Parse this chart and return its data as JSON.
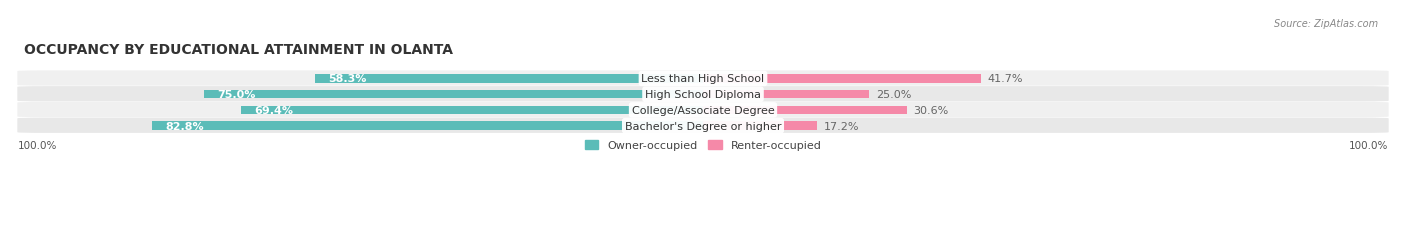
{
  "title": "OCCUPANCY BY EDUCATIONAL ATTAINMENT IN OLANTA",
  "source": "Source: ZipAtlas.com",
  "categories": [
    "Less than High School",
    "High School Diploma",
    "College/Associate Degree",
    "Bachelor's Degree or higher"
  ],
  "owner_pct": [
    58.3,
    75.0,
    69.4,
    82.8
  ],
  "renter_pct": [
    41.7,
    25.0,
    30.6,
    17.2
  ],
  "owner_color": "#5bbcb8",
  "renter_color": "#f589a8",
  "bar_bg_color": "#e8e8e8",
  "row_bg_colors": [
    "#f0f0f0",
    "#e8e8e8"
  ],
  "label_color_owner": "#ffffff",
  "label_color_renter": "#555555",
  "title_fontsize": 10,
  "tick_fontsize": 7.5,
  "label_fontsize": 8,
  "cat_fontsize": 8,
  "background_color": "#ffffff",
  "axis_label_left": "100.0%",
  "axis_label_right": "100.0%"
}
